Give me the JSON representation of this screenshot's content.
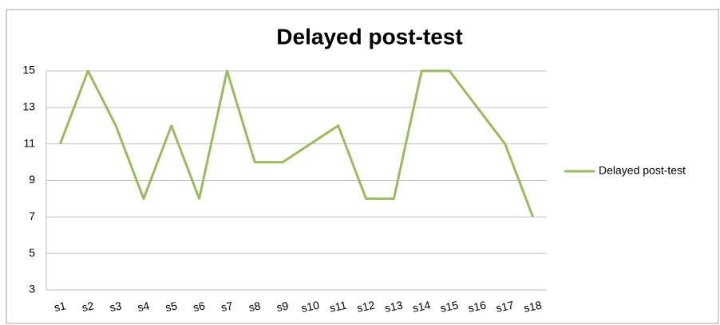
{
  "chart_data": {
    "type": "line",
    "title": "Delayed post-test",
    "categories": [
      "s1",
      "s2",
      "s3",
      "s4",
      "s5",
      "s6",
      "s7",
      "s8",
      "s9",
      "s10",
      "s11",
      "s12",
      "s13",
      "s14",
      "s15",
      "s16",
      "s17",
      "s18"
    ],
    "series": [
      {
        "name": "Delayed post-test",
        "color": "#9bbb59",
        "values": [
          11,
          15,
          12,
          8,
          12,
          8,
          15,
          10,
          10,
          11,
          12,
          8,
          8,
          15,
          15,
          13,
          11,
          7
        ]
      }
    ],
    "ylim": [
      3,
      15
    ],
    "yticks": [
      3,
      5,
      7,
      9,
      11,
      13,
      15
    ],
    "grid": true,
    "legend": "right"
  }
}
